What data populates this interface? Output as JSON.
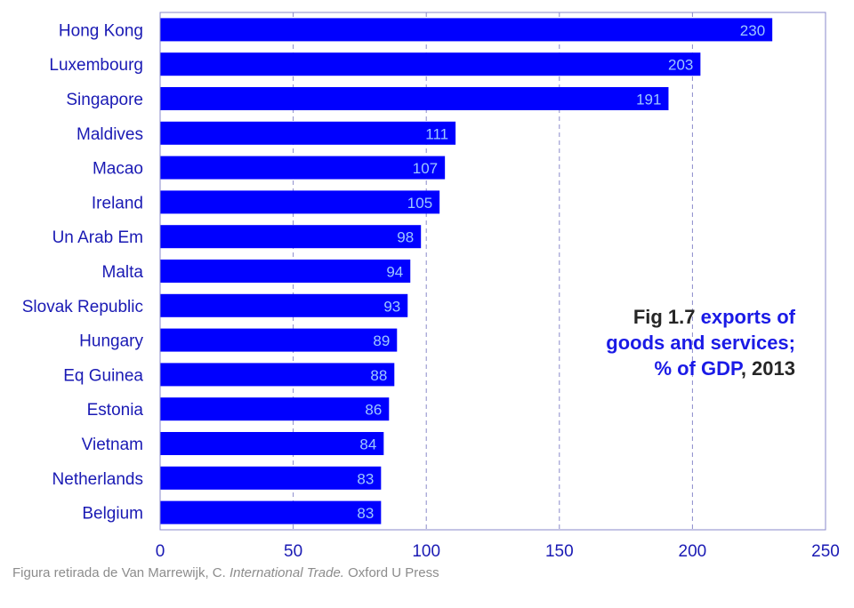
{
  "chart_data": {
    "type": "bar",
    "orientation": "horizontal",
    "categories": [
      "Hong Kong",
      "Luxembourg",
      "Singapore",
      "Maldives",
      "Macao",
      "Ireland",
      "Un Arab Em",
      "Malta",
      "Slovak Republic",
      "Hungary",
      "Eq Guinea",
      "Estonia",
      "Vietnam",
      "Netherlands",
      "Belgium"
    ],
    "values": [
      230,
      203,
      191,
      111,
      107,
      105,
      98,
      94,
      93,
      89,
      88,
      86,
      84,
      83,
      83
    ],
    "xlim": [
      0,
      250
    ],
    "xticks": [
      0,
      50,
      100,
      150,
      200,
      250
    ],
    "grid": "vertical dashed",
    "bar_color": "#0000ff",
    "label_color": "#1a1ab4",
    "value_label_color": "#9ec8ff",
    "annotation": {
      "part1": "Fig 1.7",
      "part2": "exports of",
      "line2": "goods and services;",
      "part3": "%  of GDP",
      "part4": ", 2013"
    }
  },
  "source": {
    "prefix": "Figura retirada de Van Marrewijk, C.",
    "title": "International Trade.",
    "suffix": "Oxford U Press"
  }
}
